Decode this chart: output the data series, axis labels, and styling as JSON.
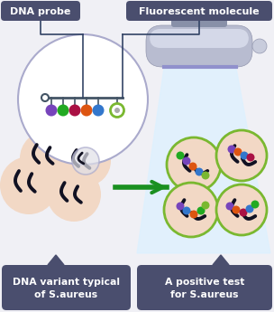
{
  "bg_color": "#f0f0f5",
  "title_box_color": "#4a4e6e",
  "title_text_color": "#ffffff",
  "label_dna_probe": "DNA probe",
  "label_fluorescent": "Fluorescent molecule",
  "label_bottom_left": "DNA variant typical\nof S.aureus",
  "label_bottom_right": "A positive test\nfor S.aureus",
  "arrow_color": "#1a9020",
  "circle_outline_color": "#7ab830",
  "cell_fill": "#f2d8c5",
  "dot_colors": [
    "#7744bb",
    "#22aa22",
    "#aa1144",
    "#dd5511",
    "#3377cc",
    "#7ab830"
  ],
  "scanner_body_dark": "#9498b0",
  "scanner_body_mid": "#b8bcd0",
  "scanner_body_light": "#d4d8e8",
  "scanner_top_rect": "#8890a8",
  "scanner_knob": "#c8ccdc",
  "scanner_purple_line": "#9090cc",
  "light_beam_color": "#ddf0ff",
  "probe_line_color": "#445566",
  "dna_color": "#111122",
  "magnifier_edge": "#aaaacc",
  "connector_color": "#334466"
}
